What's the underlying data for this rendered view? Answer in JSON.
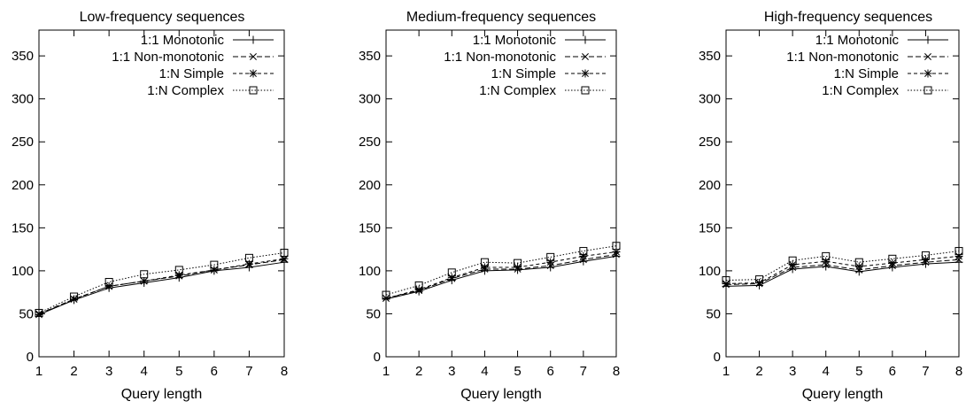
{
  "charts": [
    {
      "title": "Low-frequency sequences",
      "chart_data": {
        "type": "line",
        "title": "Low-frequency sequences",
        "xlabel": "Query length",
        "ylabel": "",
        "x": [
          1,
          2,
          3,
          4,
          5,
          6,
          7,
          8
        ],
        "xlim": [
          1,
          8
        ],
        "ylim": [
          0,
          380
        ],
        "yticks": [
          0,
          50,
          100,
          150,
          200,
          250,
          300,
          350
        ],
        "xticks": [
          1,
          2,
          3,
          4,
          5,
          6,
          7,
          8
        ],
        "legend_position": "top-right",
        "series": [
          {
            "name": "1:1 Monotonic",
            "values": [
              49,
              66,
              80,
              86,
              92,
              100,
              104,
              110
            ]
          },
          {
            "name": "1:1 Non-monotonic",
            "values": [
              50,
              67,
              82,
              88,
              94,
              101,
              107,
              113
            ]
          },
          {
            "name": "1:N Simple",
            "values": [
              49,
              67,
              82,
              88,
              95,
              101,
              108,
              114
            ]
          },
          {
            "name": "1:N Complex",
            "values": [
              51,
              70,
              87,
              96,
              101,
              107,
              115,
              121
            ]
          }
        ]
      }
    },
    {
      "title": "Medium-frequency sequences",
      "chart_data": {
        "type": "line",
        "title": "Medium-frequency sequences",
        "xlabel": "Query length",
        "ylabel": "",
        "x": [
          1,
          2,
          3,
          4,
          5,
          6,
          7,
          8
        ],
        "xlim": [
          1,
          8
        ],
        "ylim": [
          0,
          380
        ],
        "yticks": [
          0,
          50,
          100,
          150,
          200,
          250,
          300,
          350
        ],
        "xticks": [
          1,
          2,
          3,
          4,
          5,
          6,
          7,
          8
        ],
        "legend_position": "top-right",
        "series": [
          {
            "name": "1:1 Monotonic",
            "values": [
              67,
              76,
              89,
              100,
              101,
              104,
              111,
              117
            ]
          },
          {
            "name": "1:1 Non-monotonic",
            "values": [
              68,
              77,
              91,
              102,
              102,
              106,
              113,
              119
            ]
          },
          {
            "name": "1:N Simple",
            "values": [
              68,
              78,
              92,
              104,
              104,
              110,
              117,
              122
            ]
          },
          {
            "name": "1:N Complex",
            "values": [
              72,
              83,
              98,
              110,
              109,
              116,
              123,
              129
            ]
          }
        ]
      }
    },
    {
      "title": "High-frequency sequences",
      "chart_data": {
        "type": "line",
        "title": "High-frequency sequences",
        "xlabel": "Query length",
        "ylabel": "",
        "x": [
          1,
          2,
          3,
          4,
          5,
          6,
          7,
          8
        ],
        "xlim": [
          1,
          8
        ],
        "ylim": [
          0,
          380
        ],
        "yticks": [
          0,
          50,
          100,
          150,
          200,
          250,
          300,
          350
        ],
        "xticks": [
          1,
          2,
          3,
          4,
          5,
          6,
          7,
          8
        ],
        "legend_position": "top-right",
        "series": [
          {
            "name": "1:1 Monotonic",
            "values": [
              82,
              83,
              102,
              105,
              99,
              104,
              108,
              110
            ]
          },
          {
            "name": "1:1 Non-monotonic",
            "values": [
              84,
              85,
              104,
              107,
              101,
              106,
              110,
              113
            ]
          },
          {
            "name": "1:N Simple",
            "values": [
              85,
              86,
              107,
              111,
              105,
              109,
              113,
              117
            ]
          },
          {
            "name": "1:N Complex",
            "values": [
              89,
              90,
              112,
              117,
              110,
              114,
              118,
              123
            ]
          }
        ]
      }
    }
  ]
}
